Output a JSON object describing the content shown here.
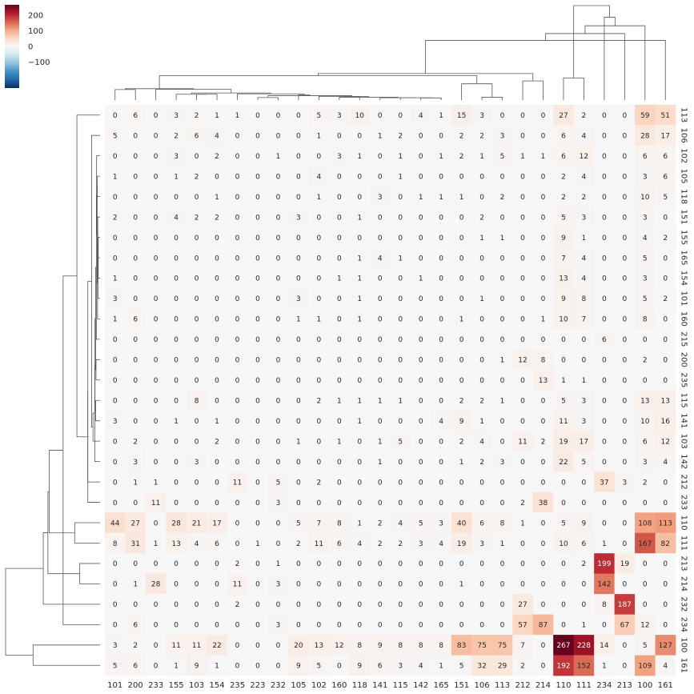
{
  "chart_data": {
    "type": "heatmap",
    "title": "",
    "xlabel": "",
    "ylabel": "",
    "x_labels": [
      "101",
      "200",
      "233",
      "155",
      "103",
      "154",
      "235",
      "223",
      "232",
      "105",
      "102",
      "160",
      "118",
      "141",
      "115",
      "142",
      "165",
      "151",
      "106",
      "113",
      "212",
      "214",
      "110",
      "111",
      "234",
      "213",
      "100",
      "161"
    ],
    "y_labels": [
      "113",
      "106",
      "102",
      "105",
      "118",
      "151",
      "155",
      "165",
      "154",
      "101",
      "160",
      "215",
      "200",
      "235",
      "115",
      "141",
      "103",
      "142",
      "212",
      "233",
      "110",
      "111",
      "213",
      "214",
      "232",
      "234",
      "100",
      "161"
    ],
    "values": [
      [
        0,
        6,
        0,
        3,
        2,
        1,
        1,
        0,
        0,
        0,
        5,
        3,
        10,
        0,
        0,
        4,
        1,
        15,
        3,
        0,
        0,
        0,
        27,
        2,
        0,
        0,
        59,
        51
      ],
      [
        5,
        0,
        0,
        2,
        6,
        4,
        0,
        0,
        0,
        0,
        1,
        0,
        0,
        1,
        2,
        0,
        0,
        2,
        2,
        3,
        0,
        0,
        6,
        4,
        0,
        0,
        28,
        17
      ],
      [
        0,
        0,
        0,
        3,
        0,
        2,
        0,
        0,
        1,
        0,
        0,
        3,
        1,
        0,
        1,
        0,
        1,
        2,
        1,
        5,
        1,
        1,
        6,
        12,
        0,
        0,
        6,
        6
      ],
      [
        1,
        0,
        0,
        1,
        2,
        0,
        0,
        0,
        0,
        0,
        4,
        0,
        0,
        0,
        1,
        0,
        0,
        0,
        0,
        0,
        0,
        0,
        2,
        4,
        0,
        0,
        3,
        6
      ],
      [
        0,
        0,
        0,
        0,
        0,
        1,
        0,
        0,
        0,
        0,
        1,
        0,
        0,
        3,
        0,
        1,
        1,
        1,
        0,
        2,
        0,
        0,
        2,
        2,
        0,
        0,
        10,
        5
      ],
      [
        2,
        0,
        0,
        4,
        2,
        2,
        0,
        0,
        0,
        3,
        0,
        0,
        1,
        0,
        0,
        0,
        0,
        0,
        2,
        0,
        0,
        0,
        5,
        3,
        0,
        0,
        3,
        0
      ],
      [
        0,
        0,
        0,
        0,
        0,
        0,
        0,
        0,
        0,
        0,
        0,
        0,
        0,
        0,
        0,
        0,
        0,
        0,
        1,
        1,
        0,
        0,
        9,
        1,
        0,
        0,
        4,
        2
      ],
      [
        0,
        0,
        0,
        0,
        0,
        0,
        0,
        0,
        0,
        0,
        0,
        0,
        1,
        4,
        1,
        0,
        0,
        0,
        0,
        0,
        0,
        0,
        7,
        4,
        0,
        0,
        5,
        0
      ],
      [
        1,
        0,
        0,
        0,
        0,
        0,
        0,
        0,
        0,
        0,
        0,
        1,
        1,
        0,
        0,
        1,
        0,
        0,
        0,
        0,
        0,
        0,
        13,
        4,
        0,
        0,
        3,
        0
      ],
      [
        3,
        0,
        0,
        0,
        0,
        0,
        0,
        0,
        0,
        3,
        0,
        0,
        1,
        0,
        0,
        0,
        0,
        0,
        1,
        0,
        0,
        0,
        9,
        8,
        0,
        0,
        5,
        2
      ],
      [
        1,
        6,
        0,
        0,
        0,
        0,
        0,
        0,
        0,
        1,
        1,
        0,
        1,
        0,
        0,
        0,
        0,
        1,
        0,
        0,
        0,
        1,
        10,
        7,
        0,
        0,
        8,
        0
      ],
      [
        0,
        0,
        0,
        0,
        0,
        0,
        0,
        0,
        0,
        0,
        0,
        0,
        0,
        0,
        0,
        0,
        0,
        0,
        0,
        0,
        0,
        0,
        0,
        0,
        6,
        0,
        0,
        0
      ],
      [
        0,
        0,
        0,
        0,
        0,
        0,
        0,
        0,
        0,
        0,
        0,
        0,
        0,
        0,
        0,
        0,
        0,
        0,
        0,
        1,
        12,
        8,
        0,
        0,
        0,
        0,
        2,
        0
      ],
      [
        0,
        0,
        0,
        0,
        0,
        0,
        0,
        0,
        0,
        0,
        0,
        0,
        0,
        0,
        0,
        0,
        0,
        0,
        0,
        0,
        0,
        13,
        1,
        1,
        0,
        0,
        0,
        0
      ],
      [
        0,
        0,
        0,
        0,
        8,
        0,
        0,
        0,
        0,
        0,
        2,
        1,
        1,
        1,
        1,
        0,
        0,
        2,
        2,
        1,
        0,
        0,
        5,
        3,
        0,
        0,
        13,
        13
      ],
      [
        3,
        0,
        0,
        1,
        0,
        1,
        0,
        0,
        0,
        0,
        0,
        0,
        1,
        0,
        0,
        0,
        4,
        9,
        1,
        0,
        0,
        0,
        11,
        3,
        0,
        0,
        10,
        16
      ],
      [
        0,
        2,
        0,
        0,
        0,
        2,
        0,
        0,
        0,
        1,
        0,
        1,
        0,
        1,
        5,
        0,
        0,
        2,
        4,
        0,
        11,
        2,
        19,
        17,
        0,
        0,
        6,
        12
      ],
      [
        0,
        3,
        0,
        0,
        3,
        0,
        0,
        0,
        0,
        0,
        0,
        0,
        0,
        1,
        0,
        0,
        0,
        1,
        2,
        3,
        0,
        0,
        22,
        5,
        0,
        0,
        3,
        4
      ],
      [
        0,
        1,
        1,
        0,
        0,
        0,
        11,
        0,
        5,
        0,
        2,
        0,
        0,
        0,
        0,
        0,
        0,
        0,
        0,
        0,
        0,
        0,
        0,
        0,
        37,
        3,
        2,
        0
      ],
      [
        0,
        0,
        11,
        0,
        0,
        0,
        0,
        0,
        3,
        0,
        0,
        0,
        0,
        0,
        0,
        0,
        0,
        0,
        0,
        0,
        2,
        38,
        0,
        0,
        0,
        0,
        0,
        0
      ],
      [
        44,
        27,
        0,
        28,
        21,
        17,
        0,
        0,
        0,
        5,
        7,
        8,
        1,
        2,
        4,
        5,
        3,
        40,
        6,
        8,
        1,
        0,
        5,
        9,
        0,
        0,
        108,
        113
      ],
      [
        8,
        31,
        1,
        13,
        4,
        6,
        0,
        1,
        0,
        2,
        11,
        6,
        4,
        2,
        2,
        3,
        4,
        19,
        3,
        1,
        0,
        0,
        10,
        6,
        1,
        0,
        167,
        82
      ],
      [
        0,
        0,
        0,
        0,
        0,
        0,
        2,
        0,
        1,
        0,
        0,
        0,
        0,
        0,
        0,
        0,
        0,
        0,
        0,
        0,
        0,
        0,
        0,
        2,
        199,
        19,
        0,
        0
      ],
      [
        0,
        1,
        28,
        0,
        0,
        0,
        11,
        0,
        3,
        0,
        0,
        0,
        0,
        0,
        0,
        0,
        0,
        1,
        0,
        0,
        0,
        0,
        0,
        0,
        142,
        0,
        0,
        0
      ],
      [
        0,
        0,
        0,
        0,
        0,
        0,
        2,
        0,
        0,
        0,
        0,
        0,
        0,
        0,
        0,
        0,
        0,
        0,
        0,
        0,
        27,
        0,
        0,
        0,
        8,
        187,
        0,
        0
      ],
      [
        0,
        6,
        0,
        0,
        0,
        0,
        0,
        0,
        3,
        0,
        0,
        0,
        0,
        0,
        0,
        0,
        0,
        0,
        0,
        0,
        57,
        87,
        0,
        1,
        0,
        67,
        12,
        0
      ],
      [
        3,
        2,
        0,
        11,
        11,
        22,
        0,
        0,
        0,
        20,
        13,
        12,
        8,
        9,
        8,
        8,
        8,
        83,
        75,
        75,
        7,
        0,
        267,
        228,
        14,
        0,
        5,
        127
      ],
      [
        5,
        6,
        0,
        1,
        9,
        1,
        0,
        0,
        0,
        9,
        5,
        0,
        9,
        6,
        3,
        4,
        1,
        5,
        32,
        29,
        2,
        0,
        192,
        152,
        1,
        0,
        109,
        4
      ]
    ],
    "colorbar": {
      "colormap": "RdBu_r",
      "vmin": -267,
      "vmax": 267,
      "ticks": [
        200,
        100,
        0,
        -100
      ],
      "tick_labels": [
        "200",
        "100",
        "0",
        "−100"
      ]
    },
    "dendrograms": {
      "column": "top",
      "row": "left"
    },
    "grid": false
  }
}
